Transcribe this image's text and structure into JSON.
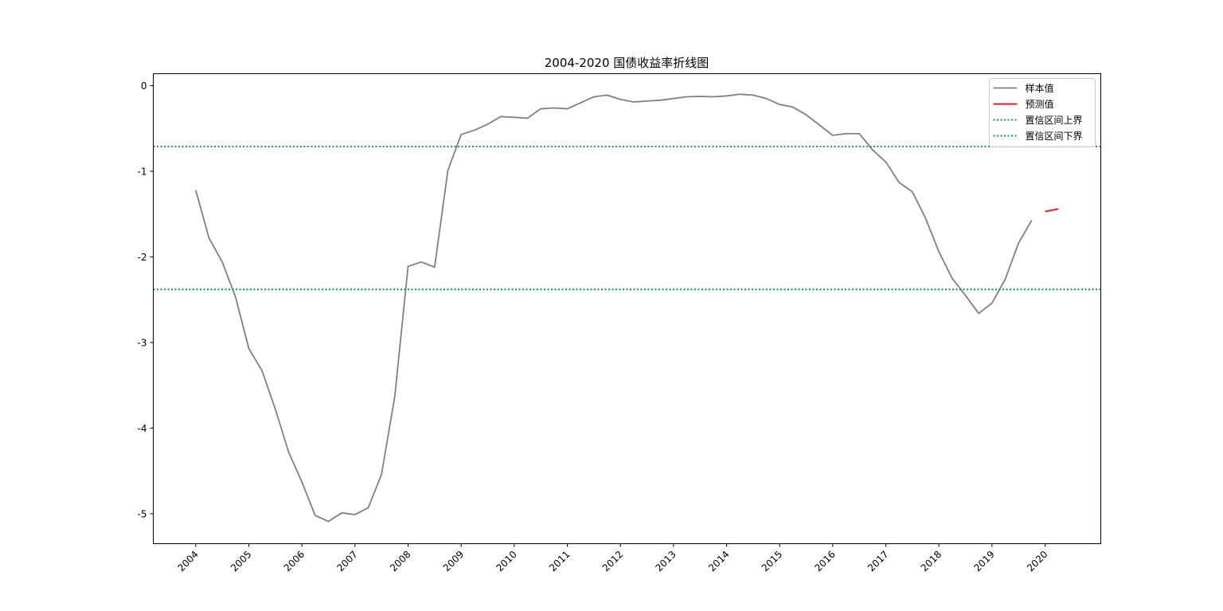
{
  "chart_data": {
    "type": "line",
    "title": "2004-2020 国债收益率折线图",
    "xlabel": "",
    "ylabel": "",
    "x_ticks": [
      "2004",
      "2005",
      "2006",
      "2007",
      "2008",
      "2009",
      "2010",
      "2011",
      "2012",
      "2013",
      "2014",
      "2015",
      "2016",
      "2017",
      "2018",
      "2019",
      "2020"
    ],
    "y_ticks": [
      0,
      -1,
      -2,
      -3,
      -4,
      -5
    ],
    "xlim": [
      2003.2,
      2021.05
    ],
    "ylim": [
      -5.35,
      0.14
    ],
    "grid": false,
    "legend_position": "top-right",
    "series": [
      {
        "name": "样本值",
        "color": "#808080",
        "style": "solid",
        "x": [
          2004.0,
          2004.25,
          2004.5,
          2004.75,
          2005.0,
          2005.25,
          2005.5,
          2005.75,
          2006.0,
          2006.25,
          2006.5,
          2006.75,
          2007.0,
          2007.25,
          2007.5,
          2007.75,
          2008.0,
          2008.25,
          2008.5,
          2008.75,
          2009.0,
          2009.25,
          2009.5,
          2009.75,
          2010.0,
          2010.25,
          2010.5,
          2010.75,
          2011.0,
          2011.25,
          2011.5,
          2011.75,
          2012.0,
          2012.25,
          2012.5,
          2012.75,
          2013.0,
          2013.25,
          2013.5,
          2013.75,
          2014.0,
          2014.25,
          2014.5,
          2014.75,
          2015.0,
          2015.25,
          2015.5,
          2015.75,
          2016.0,
          2016.25,
          2016.5,
          2016.75,
          2017.0,
          2017.25,
          2017.5,
          2017.75,
          2018.0,
          2018.25,
          2018.5,
          2018.75,
          2019.0,
          2019.25,
          2019.5,
          2019.75
        ],
        "values": [
          -1.22,
          -1.78,
          -2.06,
          -2.47,
          -3.07,
          -3.33,
          -3.78,
          -4.28,
          -4.63,
          -5.02,
          -5.09,
          -4.99,
          -5.01,
          -4.93,
          -4.54,
          -3.63,
          -2.11,
          -2.06,
          -2.12,
          -0.99,
          -0.57,
          -0.52,
          -0.45,
          -0.36,
          -0.37,
          -0.38,
          -0.27,
          -0.26,
          -0.27,
          -0.2,
          -0.13,
          -0.11,
          -0.16,
          -0.19,
          -0.18,
          -0.17,
          -0.15,
          -0.13,
          -0.125,
          -0.13,
          -0.12,
          -0.1,
          -0.11,
          -0.15,
          -0.22,
          -0.25,
          -0.34,
          -0.46,
          -0.58,
          -0.56,
          -0.56,
          -0.75,
          -0.89,
          -1.13,
          -1.24,
          -1.55,
          -1.94,
          -2.25,
          -2.45,
          -2.66,
          -2.54,
          -2.26,
          -1.84,
          -1.57
        ]
      },
      {
        "name": "预测值",
        "color": "#ff0000",
        "style": "solid",
        "x": [
          2020.0,
          2020.25
        ],
        "values": [
          -1.47,
          -1.44
        ]
      },
      {
        "name": "置信区间上界",
        "color": "#008080",
        "style": "dotted",
        "hline": -0.71
      },
      {
        "name": "置信区间下界",
        "color": "#008080",
        "style": "dotted",
        "hline": -2.38
      }
    ]
  }
}
